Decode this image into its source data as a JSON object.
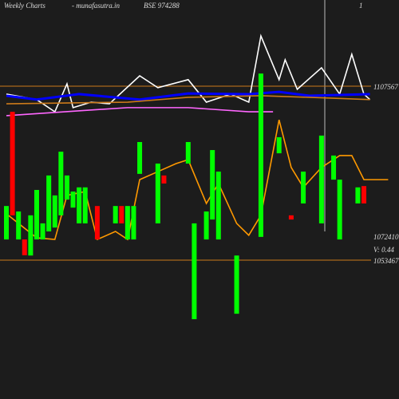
{
  "chart_data": {
    "type": "candlestick",
    "header": [
      "Weekly Charts",
      "- munafasutra.in",
      "BSE 974288",
      "1"
    ],
    "price_label": 1072410,
    "volume_label": "V: 0.44",
    "ylim": [
      1010280,
      1134372
    ],
    "yticks": [
      1107567,
      1053467
    ],
    "xlim": [
      0,
      64
    ],
    "up_color": "#00ff00",
    "down_color": "#ff0000",
    "x": [
      0,
      1,
      2,
      3,
      4,
      5,
      6,
      7,
      8,
      9,
      10,
      11,
      12,
      13,
      15,
      18,
      19,
      20,
      21,
      22,
      25,
      26,
      30,
      31,
      33,
      34,
      35,
      38,
      42,
      45,
      47,
      49,
      52,
      54,
      55,
      58,
      59
    ],
    "open": [
      1059900,
      1099600,
      1059900,
      1059900,
      1054900,
      1059900,
      1059900,
      1062400,
      1063600,
      1067400,
      1072300,
      1069800,
      1064900,
      1064900,
      1070300,
      1064900,
      1070300,
      1059900,
      1059900,
      1080300,
      1064900,
      1079800,
      1083500,
      1035100,
      1059900,
      1066100,
      1059900,
      1036800,
      1060700,
      1086700,
      1067400,
      1071100,
      1064900,
      1078500,
      1059900,
      1071100,
      1076500
    ],
    "close": [
      1070300,
      1067400,
      1068600,
      1055000,
      1067400,
      1075300,
      1064900,
      1079800,
      1073600,
      1087200,
      1079800,
      1074800,
      1076100,
      1076100,
      1059900,
      1070300,
      1064900,
      1070300,
      1070300,
      1090200,
      1083500,
      1077300,
      1090200,
      1064900,
      1068600,
      1087700,
      1081000,
      1054900,
      1111500,
      1091700,
      1066100,
      1081000,
      1092200,
      1086000,
      1078500,
      1076100,
      1071100
    ],
    "lines": [
      {
        "color": "#ffffff",
        "x": [
          0,
          5,
          8,
          10,
          11,
          14,
          17,
          22,
          25,
          30,
          33,
          37,
          40,
          42,
          45,
          46,
          48,
          52,
          55,
          57,
          59,
          60
        ],
        "values": [
          1105100,
          1103400,
          1099600,
          1108300,
          1100900,
          1102600,
          1102100,
          1110800,
          1107100,
          1109600,
          1102600,
          1105100,
          1102600,
          1123200,
          1109600,
          1115800,
          1106600,
          1113300,
          1105100,
          1117500,
          1105100,
          1103400
        ]
      },
      {
        "color": "#ff9900",
        "x": [
          0,
          5,
          8,
          10,
          13,
          15,
          18,
          20,
          22,
          25,
          28,
          30,
          33,
          35,
          38,
          40,
          42,
          45,
          47,
          49,
          52,
          55,
          57,
          59,
          63
        ],
        "values": [
          1067900,
          1060400,
          1059900,
          1073600,
          1074800,
          1059900,
          1062400,
          1059900,
          1078500,
          1081000,
          1083500,
          1084700,
          1071100,
          1077300,
          1064900,
          1061200,
          1067400,
          1097100,
          1082300,
          1076100,
          1082300,
          1086000,
          1086000,
          1078500,
          1078500
        ]
      },
      {
        "color": "#0000ff",
        "x": [
          0,
          5,
          12,
          22,
          30,
          40,
          45,
          50,
          60
        ],
        "values": [
          1104600,
          1103400,
          1105100,
          1103400,
          1105300,
          1105100,
          1105800,
          1104600,
          1105100
        ]
      },
      {
        "color": "#cc7a1a",
        "x": [
          0,
          20,
          30,
          42,
          50,
          60
        ],
        "values": [
          1102100,
          1102600,
          1104100,
          1104600,
          1104100,
          1103400
        ]
      },
      {
        "color": "#ff66ff",
        "x": [
          0,
          20,
          30,
          40,
          44
        ],
        "values": [
          1098400,
          1100900,
          1100900,
          1099600,
          1099600
        ]
      }
    ]
  }
}
